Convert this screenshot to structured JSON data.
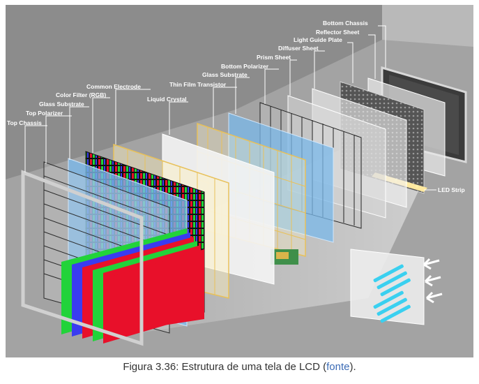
{
  "diagram": {
    "labels": {
      "top_chassis": "Top Chassis",
      "top_polarizer": "Top Polarizer",
      "glass_substrate_top": "Glass Substrate",
      "color_filter": "Color Filter (RGB)",
      "common_electrode": "Common Electrode",
      "liquid_crystal": "Liquid Crystal",
      "thin_film_transistor": "Thin Film Transistor",
      "glass_substrate_bottom": "Glass Substrate",
      "bottom_polarizer": "Bottom Polarizer",
      "prism_sheet": "Prism Sheet",
      "diffuser_sheet": "Diffuser Sheet",
      "light_guide_plate": "Light Guide Plate",
      "reflector_sheet": "Reflector Sheet",
      "bottom_chassis": "Bottom Chassis",
      "led_strip": "LED Strip"
    },
    "colors": {
      "background": "#8f8f8f",
      "red": "#e8102a",
      "green": "#22d33a",
      "blue": "#3a3cf0",
      "glass_blue": "#7ab8ea",
      "electrode_yellow": "#e8c15a",
      "led_cyan": "#3ad0f0"
    }
  },
  "caption": {
    "text": "Figura 3.36: Estrutura de uma tela de LCD (",
    "link": "fonte",
    "end": ")."
  }
}
